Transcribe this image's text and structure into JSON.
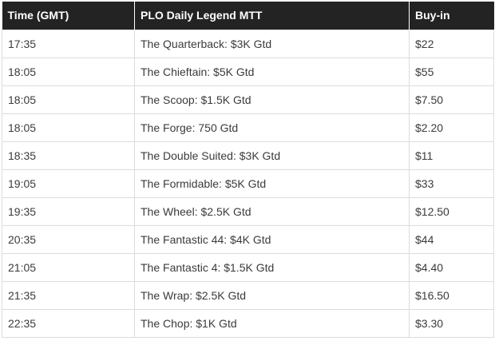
{
  "table": {
    "headers": [
      "Time (GMT)",
      "PLO Daily Legend MTT",
      "Buy-in"
    ],
    "rows": [
      [
        "17:35",
        "The Quarterback: $3K Gtd",
        "$22"
      ],
      [
        "18:05",
        "The Chieftain: $5K Gtd",
        "$55"
      ],
      [
        "18:05",
        "The Scoop: $1.5K Gtd",
        "$7.50"
      ],
      [
        "18:05",
        "The Forge: 750 Gtd",
        "$2.20"
      ],
      [
        "18:35",
        "The Double Suited: $3K Gtd",
        "$11"
      ],
      [
        "19:05",
        "The Formidable: $5K Gtd",
        "$33"
      ],
      [
        "19:35",
        "The Wheel: $2.5K Gtd",
        "$12.50"
      ],
      [
        "20:35",
        "The Fantastic 44: $4K Gtd",
        "$44"
      ],
      [
        "21:05",
        "The Fantastic 4: $1.5K Gtd",
        "$4.40"
      ],
      [
        "21:35",
        "The Wrap: $2.5K Gtd",
        "$16.50"
      ],
      [
        "22:35",
        "The Chop: $1K Gtd",
        "$3.30"
      ]
    ]
  },
  "colors": {
    "header_background": "#232323",
    "header_text": "#ffffff",
    "cell_text": "#3b3b3b",
    "cell_border": "#dcdcdc"
  }
}
